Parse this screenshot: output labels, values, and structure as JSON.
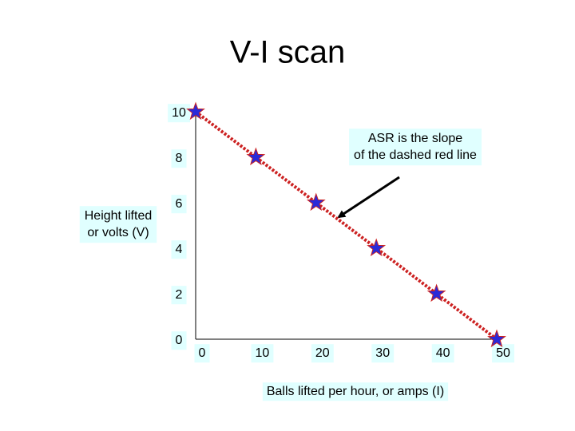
{
  "chart_data": {
    "type": "line",
    "title": "V-I scan",
    "xlabel": "Balls lifted per hour, or amps (I)",
    "ylabel": [
      "Height lifted",
      "or volts (V)"
    ],
    "annotation": [
      "ASR is the slope",
      "of the dashed red line"
    ],
    "x": [
      0,
      10,
      20,
      30,
      40,
      50
    ],
    "values": [
      10,
      8,
      6,
      4,
      2,
      0
    ],
    "line_color": "#cc2222",
    "marker_color": "#2a2ad8",
    "xlim": [
      0,
      50
    ],
    "xticks": [
      0,
      10,
      20,
      30,
      40,
      50
    ],
    "ylim": [
      0,
      10
    ],
    "yticks": [
      0,
      2,
      4,
      6,
      8,
      10
    ]
  }
}
